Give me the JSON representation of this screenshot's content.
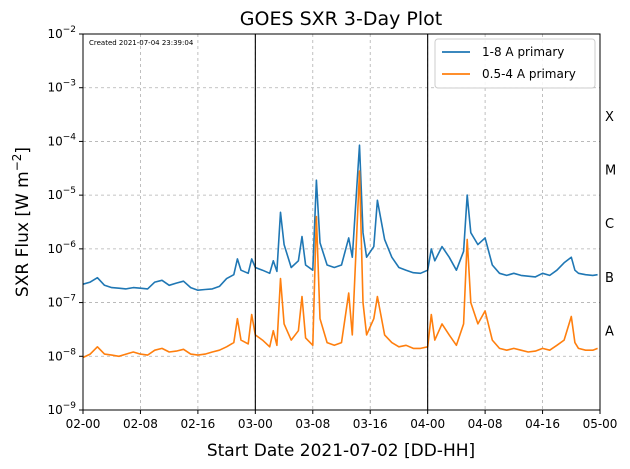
{
  "chart_data": {
    "type": "line",
    "title": "GOES SXR 3-Day Plot",
    "xlabel": "Start Date 2021-07-02 [DD-HH]",
    "ylabel": "SXR Flux [W m",
    "ylabel_superscript": "−2",
    "ylabel_suffix": "]",
    "created_note": "Created 2021-07-04 23:39:04",
    "yscale": "log",
    "ylim": [
      1e-09,
      0.01
    ],
    "y_ticks": [
      {
        "exp": -9,
        "base": "10",
        "power": "−9"
      },
      {
        "exp": -8,
        "base": "10",
        "power": "−8"
      },
      {
        "exp": -7,
        "base": "10",
        "power": "−7"
      },
      {
        "exp": -6,
        "base": "10",
        "power": "−6"
      },
      {
        "exp": -5,
        "base": "10",
        "power": "−5"
      },
      {
        "exp": -4,
        "base": "10",
        "power": "−4"
      },
      {
        "exp": -3,
        "base": "10",
        "power": "−3"
      },
      {
        "exp": -2,
        "base": "10",
        "power": "−2"
      }
    ],
    "xlim": [
      "2021-07-02 00:00",
      "2021-07-05 00:00"
    ],
    "x_ticks": [
      {
        "time": "2021-07-02 00:00",
        "label": "02-00"
      },
      {
        "time": "2021-07-02 08:00",
        "label": "02-08"
      },
      {
        "time": "2021-07-02 16:00",
        "label": "02-16"
      },
      {
        "time": "2021-07-03 00:00",
        "label": "03-00"
      },
      {
        "time": "2021-07-03 08:00",
        "label": "03-08"
      },
      {
        "time": "2021-07-03 16:00",
        "label": "03-16"
      },
      {
        "time": "2021-07-04 00:00",
        "label": "04-00"
      },
      {
        "time": "2021-07-04 08:00",
        "label": "04-08"
      },
      {
        "time": "2021-07-04 16:00",
        "label": "04-16"
      },
      {
        "time": "2021-07-05 00:00",
        "label": "05-00"
      }
    ],
    "day_boundaries": [
      "2021-07-03 00:00",
      "2021-07-04 00:00"
    ],
    "grid": true,
    "legend_position": "top-right",
    "flare_classes": [
      {
        "label": "A",
        "flux": 3e-08
      },
      {
        "label": "B",
        "flux": 3e-07
      },
      {
        "label": "C",
        "flux": 3e-06
      },
      {
        "label": "M",
        "flux": 3e-05
      },
      {
        "label": "X",
        "flux": 0.0003
      }
    ],
    "series": [
      {
        "name": "1-8 A primary",
        "color": "#1f77b4",
        "points": [
          [
            "2021-07-02 00:00",
            2.2e-07
          ],
          [
            "2021-07-02 01:00",
            2.4e-07
          ],
          [
            "2021-07-02 02:00",
            2.9e-07
          ],
          [
            "2021-07-02 03:00",
            2.1e-07
          ],
          [
            "2021-07-02 04:00",
            1.9e-07
          ],
          [
            "2021-07-02 05:00",
            1.85e-07
          ],
          [
            "2021-07-02 06:00",
            1.8e-07
          ],
          [
            "2021-07-02 07:00",
            1.9e-07
          ],
          [
            "2021-07-02 08:00",
            1.85e-07
          ],
          [
            "2021-07-02 09:00",
            1.8e-07
          ],
          [
            "2021-07-02 10:00",
            2.4e-07
          ],
          [
            "2021-07-02 11:00",
            2.6e-07
          ],
          [
            "2021-07-02 12:00",
            2.1e-07
          ],
          [
            "2021-07-02 13:00",
            2.3e-07
          ],
          [
            "2021-07-02 14:00",
            2.5e-07
          ],
          [
            "2021-07-02 15:00",
            1.9e-07
          ],
          [
            "2021-07-02 16:00",
            1.7e-07
          ],
          [
            "2021-07-02 17:00",
            1.75e-07
          ],
          [
            "2021-07-02 18:00",
            1.8e-07
          ],
          [
            "2021-07-02 19:00",
            2e-07
          ],
          [
            "2021-07-02 20:00",
            2.8e-07
          ],
          [
            "2021-07-02 21:00",
            3.3e-07
          ],
          [
            "2021-07-02 21:30",
            6.5e-07
          ],
          [
            "2021-07-02 22:00",
            4e-07
          ],
          [
            "2021-07-02 23:00",
            3.5e-07
          ],
          [
            "2021-07-02 23:30",
            6.5e-07
          ],
          [
            "2021-07-03 00:00",
            4.5e-07
          ],
          [
            "2021-07-03 01:00",
            4e-07
          ],
          [
            "2021-07-03 02:00",
            3.5e-07
          ],
          [
            "2021-07-03 02:30",
            6e-07
          ],
          [
            "2021-07-03 03:00",
            3.8e-07
          ],
          [
            "2021-07-03 03:30",
            4.8e-06
          ],
          [
            "2021-07-03 04:00",
            1.2e-06
          ],
          [
            "2021-07-03 05:00",
            4.5e-07
          ],
          [
            "2021-07-03 06:00",
            6e-07
          ],
          [
            "2021-07-03 06:30",
            1.7e-06
          ],
          [
            "2021-07-03 07:00",
            5e-07
          ],
          [
            "2021-07-03 08:00",
            4e-07
          ],
          [
            "2021-07-03 08:30",
            1.9e-05
          ],
          [
            "2021-07-03 09:00",
            1.3e-06
          ],
          [
            "2021-07-03 10:00",
            5e-07
          ],
          [
            "2021-07-03 11:00",
            4.5e-07
          ],
          [
            "2021-07-03 12:00",
            5e-07
          ],
          [
            "2021-07-03 13:00",
            1.6e-06
          ],
          [
            "2021-07-03 13:30",
            7e-07
          ],
          [
            "2021-07-03 14:30",
            8.5e-05
          ],
          [
            "2021-07-03 15:00",
            2e-06
          ],
          [
            "2021-07-03 15:30",
            7e-07
          ],
          [
            "2021-07-03 16:30",
            1.1e-06
          ],
          [
            "2021-07-03 17:00",
            8e-06
          ],
          [
            "2021-07-03 18:00",
            1.5e-06
          ],
          [
            "2021-07-03 19:00",
            7e-07
          ],
          [
            "2021-07-03 20:00",
            4.5e-07
          ],
          [
            "2021-07-03 21:00",
            4e-07
          ],
          [
            "2021-07-03 22:00",
            3.6e-07
          ],
          [
            "2021-07-03 23:00",
            3.5e-07
          ],
          [
            "2021-07-04 00:00",
            4e-07
          ],
          [
            "2021-07-04 00:30",
            1e-06
          ],
          [
            "2021-07-04 01:00",
            6e-07
          ],
          [
            "2021-07-04 02:00",
            1.1e-06
          ],
          [
            "2021-07-04 03:00",
            7e-07
          ],
          [
            "2021-07-04 04:00",
            4e-07
          ],
          [
            "2021-07-04 05:00",
            9e-07
          ],
          [
            "2021-07-04 05:30",
            1e-05
          ],
          [
            "2021-07-04 06:00",
            2e-06
          ],
          [
            "2021-07-04 07:00",
            1.2e-06
          ],
          [
            "2021-07-04 08:00",
            1.6e-06
          ],
          [
            "2021-07-04 09:00",
            5e-07
          ],
          [
            "2021-07-04 10:00",
            3.5e-07
          ],
          [
            "2021-07-04 11:00",
            3.2e-07
          ],
          [
            "2021-07-04 12:00",
            3.5e-07
          ],
          [
            "2021-07-04 13:00",
            3.2e-07
          ],
          [
            "2021-07-04 14:00",
            3.1e-07
          ],
          [
            "2021-07-04 15:00",
            3e-07
          ],
          [
            "2021-07-04 16:00",
            3.5e-07
          ],
          [
            "2021-07-04 17:00",
            3.2e-07
          ],
          [
            "2021-07-04 18:00",
            4e-07
          ],
          [
            "2021-07-04 19:00",
            5.5e-07
          ],
          [
            "2021-07-04 20:00",
            7e-07
          ],
          [
            "2021-07-04 20:30",
            4e-07
          ],
          [
            "2021-07-04 21:00",
            3.5e-07
          ],
          [
            "2021-07-04 22:00",
            3.3e-07
          ],
          [
            "2021-07-04 23:00",
            3.2e-07
          ],
          [
            "2021-07-04 23:40",
            3.3e-07
          ]
        ]
      },
      {
        "name": "0.5-4 A primary",
        "color": "#ff7f0e",
        "points": [
          [
            "2021-07-02 00:00",
            9.5e-09
          ],
          [
            "2021-07-02 01:00",
            1.1e-08
          ],
          [
            "2021-07-02 02:00",
            1.5e-08
          ],
          [
            "2021-07-02 03:00",
            1.1e-08
          ],
          [
            "2021-07-02 04:00",
            1.05e-08
          ],
          [
            "2021-07-02 05:00",
            1e-08
          ],
          [
            "2021-07-02 06:00",
            1.1e-08
          ],
          [
            "2021-07-02 07:00",
            1.2e-08
          ],
          [
            "2021-07-02 08:00",
            1.1e-08
          ],
          [
            "2021-07-02 09:00",
            1.05e-08
          ],
          [
            "2021-07-02 10:00",
            1.3e-08
          ],
          [
            "2021-07-02 11:00",
            1.4e-08
          ],
          [
            "2021-07-02 12:00",
            1.2e-08
          ],
          [
            "2021-07-02 13:00",
            1.25e-08
          ],
          [
            "2021-07-02 14:00",
            1.35e-08
          ],
          [
            "2021-07-02 15:00",
            1.1e-08
          ],
          [
            "2021-07-02 16:00",
            1.05e-08
          ],
          [
            "2021-07-02 17:00",
            1.1e-08
          ],
          [
            "2021-07-02 18:00",
            1.2e-08
          ],
          [
            "2021-07-02 19:00",
            1.3e-08
          ],
          [
            "2021-07-02 20:00",
            1.5e-08
          ],
          [
            "2021-07-02 21:00",
            1.8e-08
          ],
          [
            "2021-07-02 21:30",
            5e-08
          ],
          [
            "2021-07-02 22:00",
            2e-08
          ],
          [
            "2021-07-02 23:00",
            1.7e-08
          ],
          [
            "2021-07-02 23:30",
            6e-08
          ],
          [
            "2021-07-03 00:00",
            2.5e-08
          ],
          [
            "2021-07-03 01:00",
            2e-08
          ],
          [
            "2021-07-03 02:00",
            1.5e-08
          ],
          [
            "2021-07-03 02:30",
            3e-08
          ],
          [
            "2021-07-03 03:00",
            1.6e-08
          ],
          [
            "2021-07-03 03:30",
            2.8e-07
          ],
          [
            "2021-07-03 04:00",
            4e-08
          ],
          [
            "2021-07-03 05:00",
            2e-08
          ],
          [
            "2021-07-03 06:00",
            3e-08
          ],
          [
            "2021-07-03 06:30",
            1.3e-07
          ],
          [
            "2021-07-03 07:00",
            2.2e-08
          ],
          [
            "2021-07-03 08:00",
            1.6e-08
          ],
          [
            "2021-07-03 08:30",
            4e-06
          ],
          [
            "2021-07-03 09:00",
            5e-08
          ],
          [
            "2021-07-03 10:00",
            1.8e-08
          ],
          [
            "2021-07-03 11:00",
            1.6e-08
          ],
          [
            "2021-07-03 12:00",
            1.8e-08
          ],
          [
            "2021-07-03 13:00",
            1.5e-07
          ],
          [
            "2021-07-03 13:30",
            2.5e-08
          ],
          [
            "2021-07-03 14:30",
            2.8e-05
          ],
          [
            "2021-07-03 15:00",
            1e-07
          ],
          [
            "2021-07-03 15:30",
            2.5e-08
          ],
          [
            "2021-07-03 16:30",
            5e-08
          ],
          [
            "2021-07-03 17:00",
            1.3e-07
          ],
          [
            "2021-07-03 18:00",
            2.5e-08
          ],
          [
            "2021-07-03 19:00",
            1.8e-08
          ],
          [
            "2021-07-03 20:00",
            1.5e-08
          ],
          [
            "2021-07-03 21:00",
            1.6e-08
          ],
          [
            "2021-07-03 22:00",
            1.4e-08
          ],
          [
            "2021-07-03 23:00",
            1.4e-08
          ],
          [
            "2021-07-04 00:00",
            1.5e-08
          ],
          [
            "2021-07-04 00:30",
            6e-08
          ],
          [
            "2021-07-04 01:00",
            2e-08
          ],
          [
            "2021-07-04 02:00",
            4e-08
          ],
          [
            "2021-07-04 03:00",
            2.5e-08
          ],
          [
            "2021-07-04 04:00",
            1.6e-08
          ],
          [
            "2021-07-04 05:00",
            4e-08
          ],
          [
            "2021-07-04 05:30",
            1.5e-06
          ],
          [
            "2021-07-04 06:00",
            1e-07
          ],
          [
            "2021-07-04 07:00",
            4e-08
          ],
          [
            "2021-07-04 08:00",
            7e-08
          ],
          [
            "2021-07-04 09:00",
            2e-08
          ],
          [
            "2021-07-04 10:00",
            1.4e-08
          ],
          [
            "2021-07-04 11:00",
            1.3e-08
          ],
          [
            "2021-07-04 12:00",
            1.4e-08
          ],
          [
            "2021-07-04 13:00",
            1.3e-08
          ],
          [
            "2021-07-04 14:00",
            1.2e-08
          ],
          [
            "2021-07-04 15:00",
            1.25e-08
          ],
          [
            "2021-07-04 16:00",
            1.4e-08
          ],
          [
            "2021-07-04 17:00",
            1.3e-08
          ],
          [
            "2021-07-04 18:00",
            1.6e-08
          ],
          [
            "2021-07-04 19:00",
            2e-08
          ],
          [
            "2021-07-04 20:00",
            5.5e-08
          ],
          [
            "2021-07-04 20:30",
            1.8e-08
          ],
          [
            "2021-07-04 21:00",
            1.4e-08
          ],
          [
            "2021-07-04 22:00",
            1.3e-08
          ],
          [
            "2021-07-04 23:00",
            1.3e-08
          ],
          [
            "2021-07-04 23:40",
            1.4e-08
          ]
        ]
      }
    ]
  }
}
